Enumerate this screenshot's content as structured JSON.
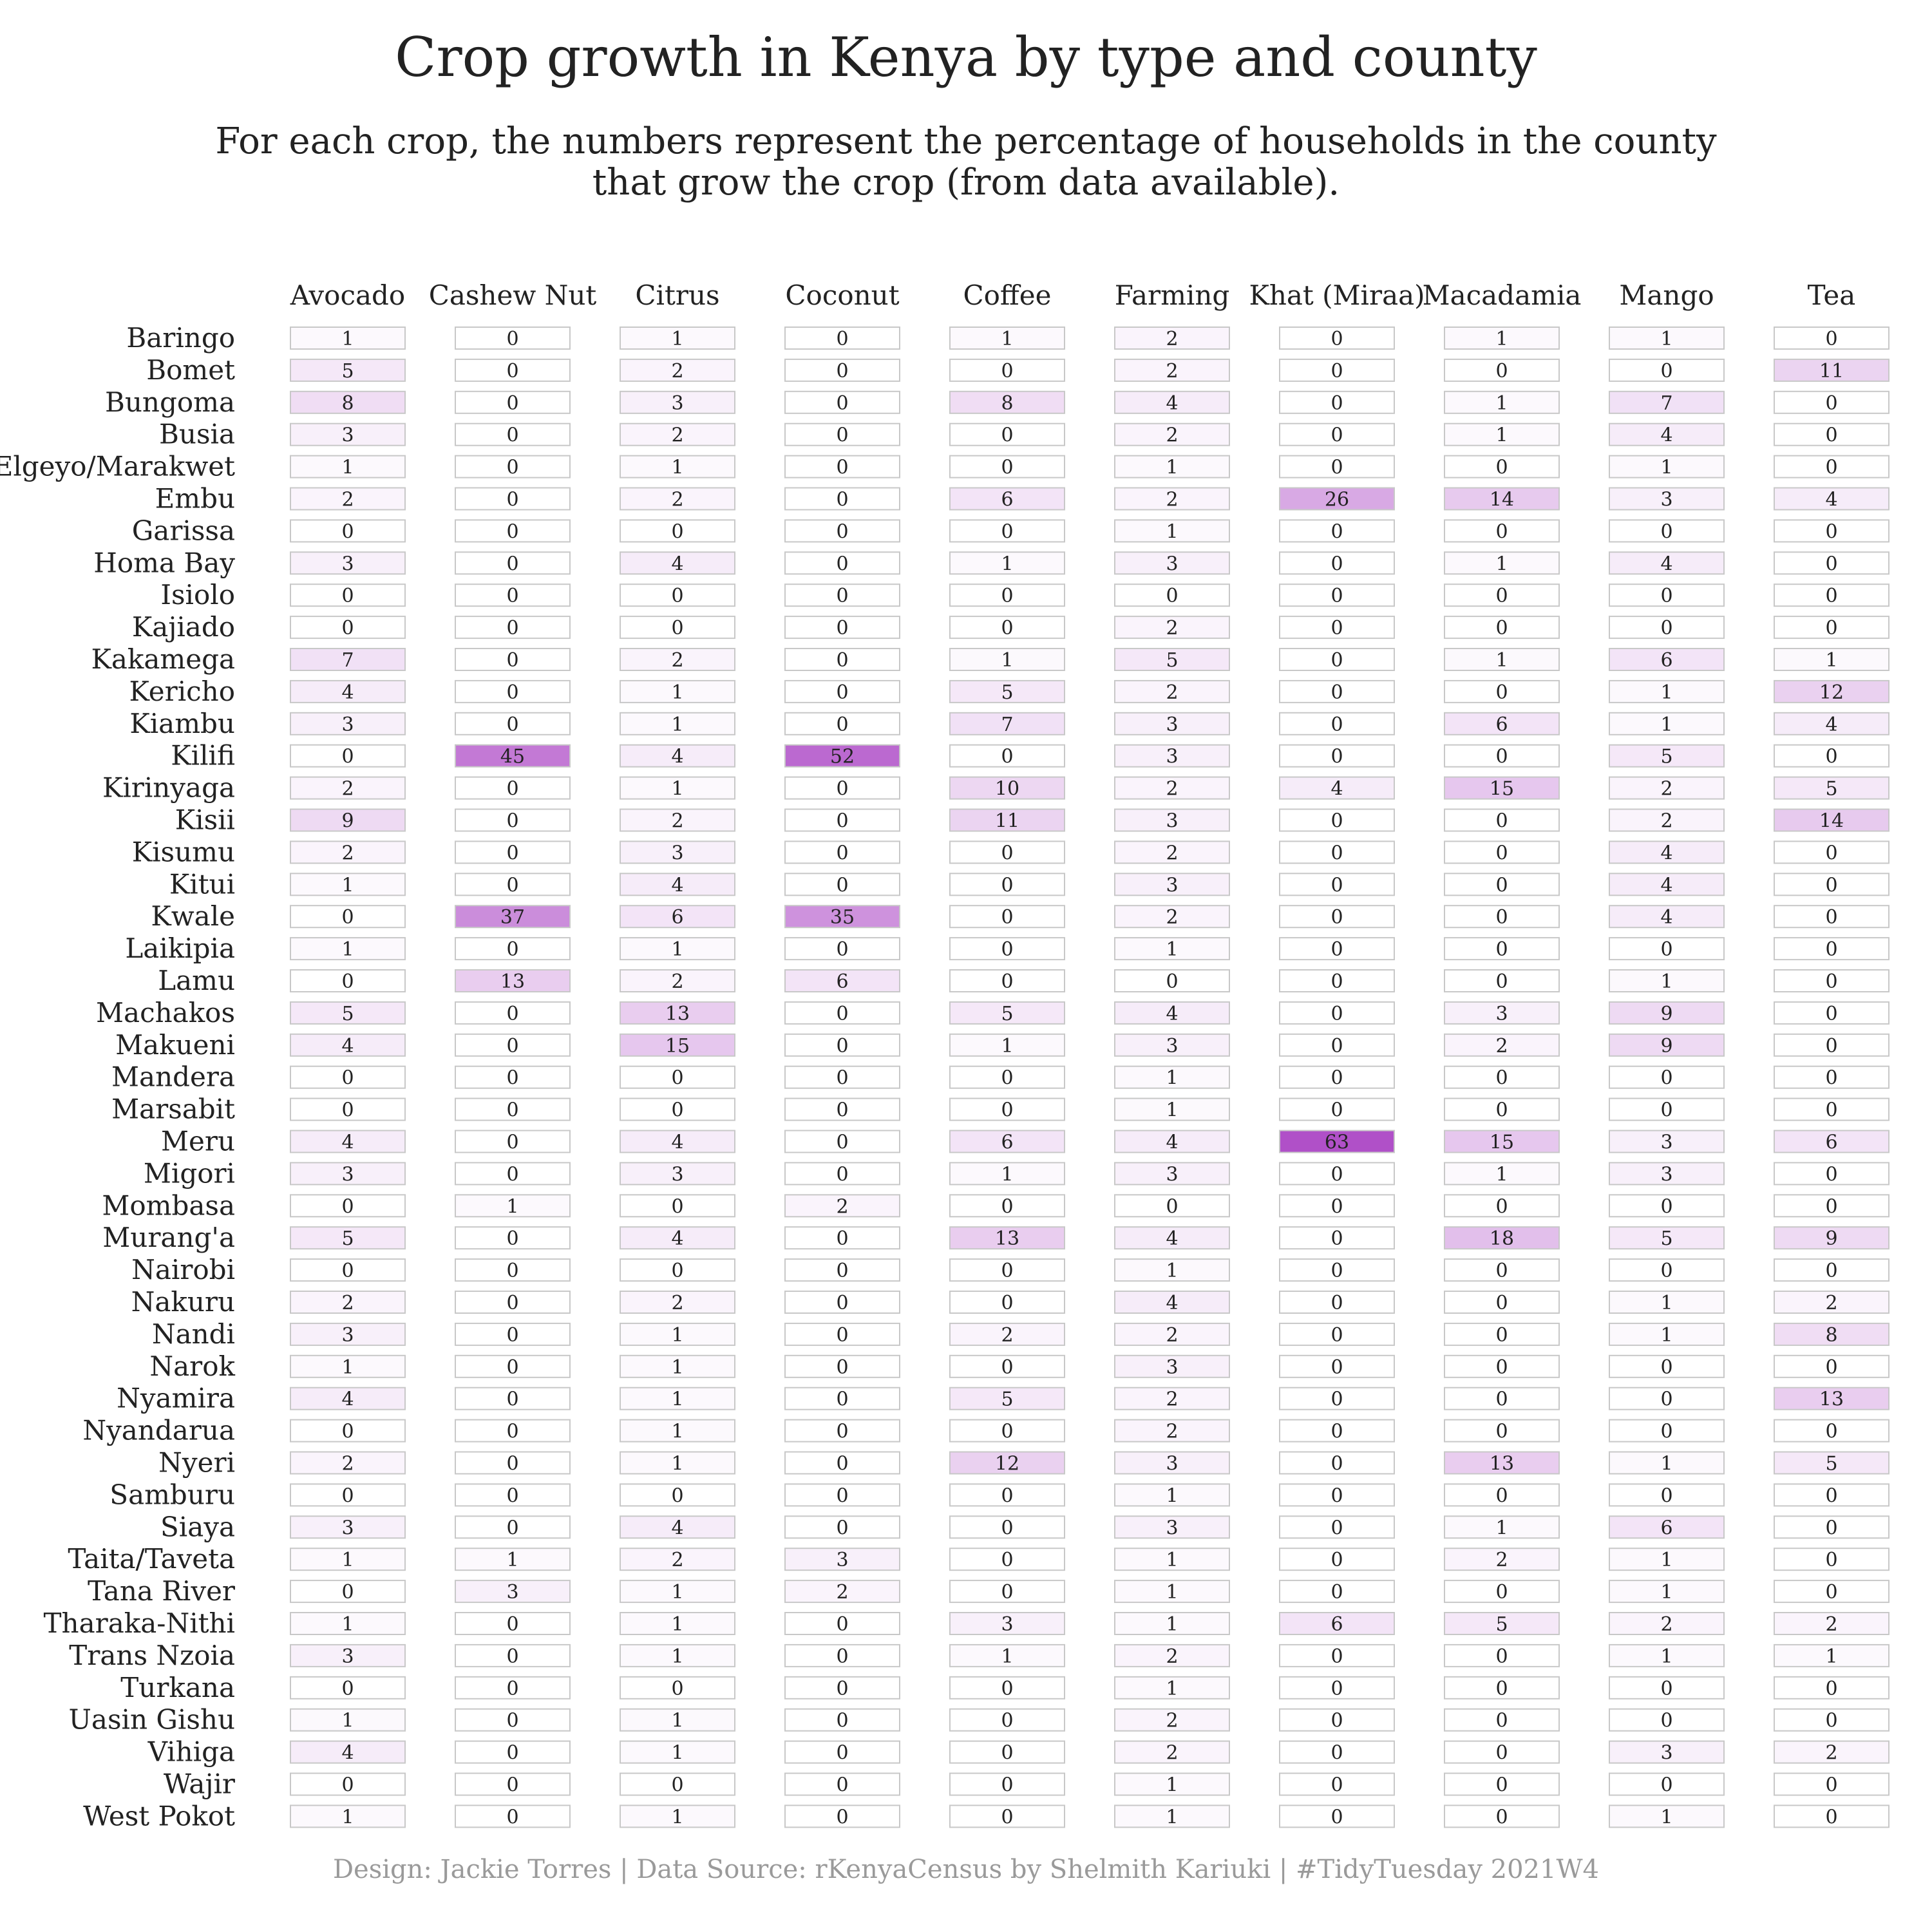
{
  "title": "Crop growth in Kenya by type and county",
  "subtitle_line1": "For each crop, the numbers represent the percentage of households in the county",
  "subtitle_line2": "that grow the crop (from data available).",
  "caption": "Design: Jackie Torres | Data Source: rKenyaCensus by Shelmith Kariuki | #TidyTuesday 2021W4",
  "colors": {
    "low": "#ffffff",
    "high": "#b050c8",
    "border": "#c8c8c8",
    "text": "#222222"
  },
  "chart_data": {
    "type": "heatmap",
    "title": "Crop growth in Kenya by type and county",
    "columns": [
      "Avocado",
      "Cashew Nut",
      "Citrus",
      "Coconut",
      "Coffee",
      "Farming",
      "Khat (Miraa)",
      "Macadamia",
      "Mango",
      "Tea"
    ],
    "rows": [
      "Baringo",
      "Bomet",
      "Bungoma",
      "Busia",
      "Elgeyo/Marakwet",
      "Embu",
      "Garissa",
      "Homa Bay",
      "Isiolo",
      "Kajiado",
      "Kakamega",
      "Kericho",
      "Kiambu",
      "Kilifi",
      "Kirinyaga",
      "Kisii",
      "Kisumu",
      "Kitui",
      "Kwale",
      "Laikipia",
      "Lamu",
      "Machakos",
      "Makueni",
      "Mandera",
      "Marsabit",
      "Meru",
      "Migori",
      "Mombasa",
      "Murang'a",
      "Nairobi",
      "Nakuru",
      "Nandi",
      "Narok",
      "Nyamira",
      "Nyandarua",
      "Nyeri",
      "Samburu",
      "Siaya",
      "Taita/Taveta",
      "Tana River",
      "Tharaka-Nithi",
      "Trans Nzoia",
      "Turkana",
      "Uasin Gishu",
      "Vihiga",
      "Wajir",
      "West Pokot"
    ],
    "values": [
      [
        1,
        0,
        1,
        0,
        1,
        2,
        0,
        1,
        1,
        0
      ],
      [
        5,
        0,
        2,
        0,
        0,
        2,
        0,
        0,
        0,
        11
      ],
      [
        8,
        0,
        3,
        0,
        8,
        4,
        0,
        1,
        7,
        0
      ],
      [
        3,
        0,
        2,
        0,
        0,
        2,
        0,
        1,
        4,
        0
      ],
      [
        1,
        0,
        1,
        0,
        0,
        1,
        0,
        0,
        1,
        0
      ],
      [
        2,
        0,
        2,
        0,
        6,
        2,
        26,
        14,
        3,
        4
      ],
      [
        0,
        0,
        0,
        0,
        0,
        1,
        0,
        0,
        0,
        0
      ],
      [
        3,
        0,
        4,
        0,
        1,
        3,
        0,
        1,
        4,
        0
      ],
      [
        0,
        0,
        0,
        0,
        0,
        0,
        0,
        0,
        0,
        0
      ],
      [
        0,
        0,
        0,
        0,
        0,
        2,
        0,
        0,
        0,
        0
      ],
      [
        7,
        0,
        2,
        0,
        1,
        5,
        0,
        1,
        6,
        1
      ],
      [
        4,
        0,
        1,
        0,
        5,
        2,
        0,
        0,
        1,
        12
      ],
      [
        3,
        0,
        1,
        0,
        7,
        3,
        0,
        6,
        1,
        4
      ],
      [
        0,
        45,
        4,
        52,
        0,
        3,
        0,
        0,
        5,
        0
      ],
      [
        2,
        0,
        1,
        0,
        10,
        2,
        4,
        15,
        2,
        5
      ],
      [
        9,
        0,
        2,
        0,
        11,
        3,
        0,
        0,
        2,
        14
      ],
      [
        2,
        0,
        3,
        0,
        0,
        2,
        0,
        0,
        4,
        0
      ],
      [
        1,
        0,
        4,
        0,
        0,
        3,
        0,
        0,
        4,
        0
      ],
      [
        0,
        37,
        6,
        35,
        0,
        2,
        0,
        0,
        4,
        0
      ],
      [
        1,
        0,
        1,
        0,
        0,
        1,
        0,
        0,
        0,
        0
      ],
      [
        0,
        13,
        2,
        6,
        0,
        0,
        0,
        0,
        1,
        0
      ],
      [
        5,
        0,
        13,
        0,
        5,
        4,
        0,
        3,
        9,
        0
      ],
      [
        4,
        0,
        15,
        0,
        1,
        3,
        0,
        2,
        9,
        0
      ],
      [
        0,
        0,
        0,
        0,
        0,
        1,
        0,
        0,
        0,
        0
      ],
      [
        0,
        0,
        0,
        0,
        0,
        1,
        0,
        0,
        0,
        0
      ],
      [
        4,
        0,
        4,
        0,
        6,
        4,
        63,
        15,
        3,
        6
      ],
      [
        3,
        0,
        3,
        0,
        1,
        3,
        0,
        1,
        3,
        0
      ],
      [
        0,
        1,
        0,
        2,
        0,
        0,
        0,
        0,
        0,
        0
      ],
      [
        5,
        0,
        4,
        0,
        13,
        4,
        0,
        18,
        5,
        9
      ],
      [
        0,
        0,
        0,
        0,
        0,
        1,
        0,
        0,
        0,
        0
      ],
      [
        2,
        0,
        2,
        0,
        0,
        4,
        0,
        0,
        1,
        2
      ],
      [
        3,
        0,
        1,
        0,
        2,
        2,
        0,
        0,
        1,
        8
      ],
      [
        1,
        0,
        1,
        0,
        0,
        3,
        0,
        0,
        0,
        0
      ],
      [
        4,
        0,
        1,
        0,
        5,
        2,
        0,
        0,
        0,
        13
      ],
      [
        0,
        0,
        1,
        0,
        0,
        2,
        0,
        0,
        0,
        0
      ],
      [
        2,
        0,
        1,
        0,
        12,
        3,
        0,
        13,
        1,
        5
      ],
      [
        0,
        0,
        0,
        0,
        0,
        1,
        0,
        0,
        0,
        0
      ],
      [
        3,
        0,
        4,
        0,
        0,
        3,
        0,
        1,
        6,
        0
      ],
      [
        1,
        1,
        2,
        3,
        0,
        1,
        0,
        2,
        1,
        0
      ],
      [
        0,
        3,
        1,
        2,
        0,
        1,
        0,
        0,
        1,
        0
      ],
      [
        1,
        0,
        1,
        0,
        3,
        1,
        6,
        5,
        2,
        2
      ],
      [
        3,
        0,
        1,
        0,
        1,
        2,
        0,
        0,
        1,
        1
      ],
      [
        0,
        0,
        0,
        0,
        0,
        1,
        0,
        0,
        0,
        0
      ],
      [
        1,
        0,
        1,
        0,
        0,
        2,
        0,
        0,
        0,
        0
      ],
      [
        4,
        0,
        1,
        0,
        0,
        2,
        0,
        0,
        3,
        2
      ],
      [
        0,
        0,
        0,
        0,
        0,
        1,
        0,
        0,
        0,
        0
      ],
      [
        1,
        0,
        1,
        0,
        0,
        1,
        0,
        0,
        1,
        0
      ]
    ],
    "value_range": [
      0,
      63
    ]
  }
}
